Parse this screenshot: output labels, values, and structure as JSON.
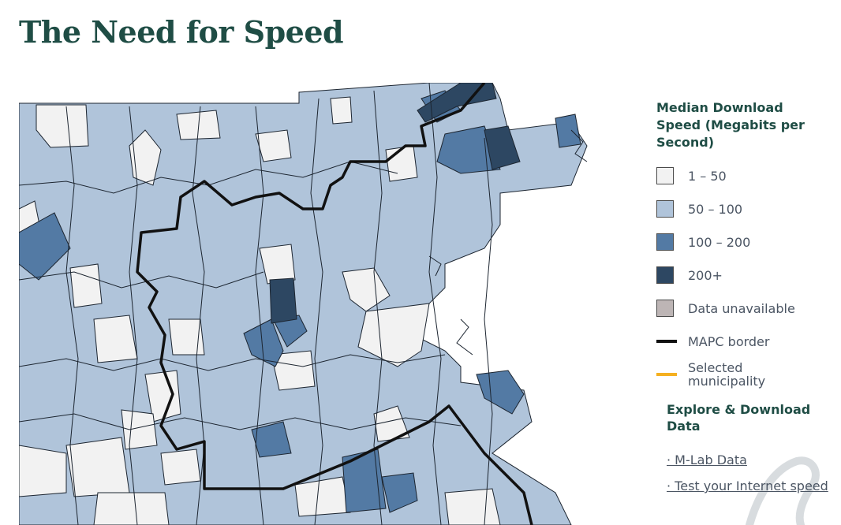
{
  "header": {
    "title": "The Need for Speed"
  },
  "legend": {
    "title": "Median Download Speed (Megabits per Second)",
    "items": [
      {
        "label": "1 – 50",
        "color": "#f2f2f2",
        "kind": "swatch"
      },
      {
        "label": "50 – 100",
        "color": "#b0c4da",
        "kind": "swatch"
      },
      {
        "label": "100 – 200",
        "color": "#537aa4",
        "kind": "swatch"
      },
      {
        "label": "200+",
        "color": "#2d4762",
        "kind": "swatch"
      },
      {
        "label": "Data unavailable",
        "color": "#bdb5b5",
        "kind": "swatch"
      },
      {
        "label": "MAPC border",
        "color": "#111111",
        "kind": "line"
      },
      {
        "label": "Selected municipality",
        "color": "#f5b020",
        "kind": "line"
      }
    ]
  },
  "explore": {
    "title": "Explore & Download Data",
    "links": [
      "· M-Lab Data",
      "· Test your Internet speed"
    ]
  }
}
